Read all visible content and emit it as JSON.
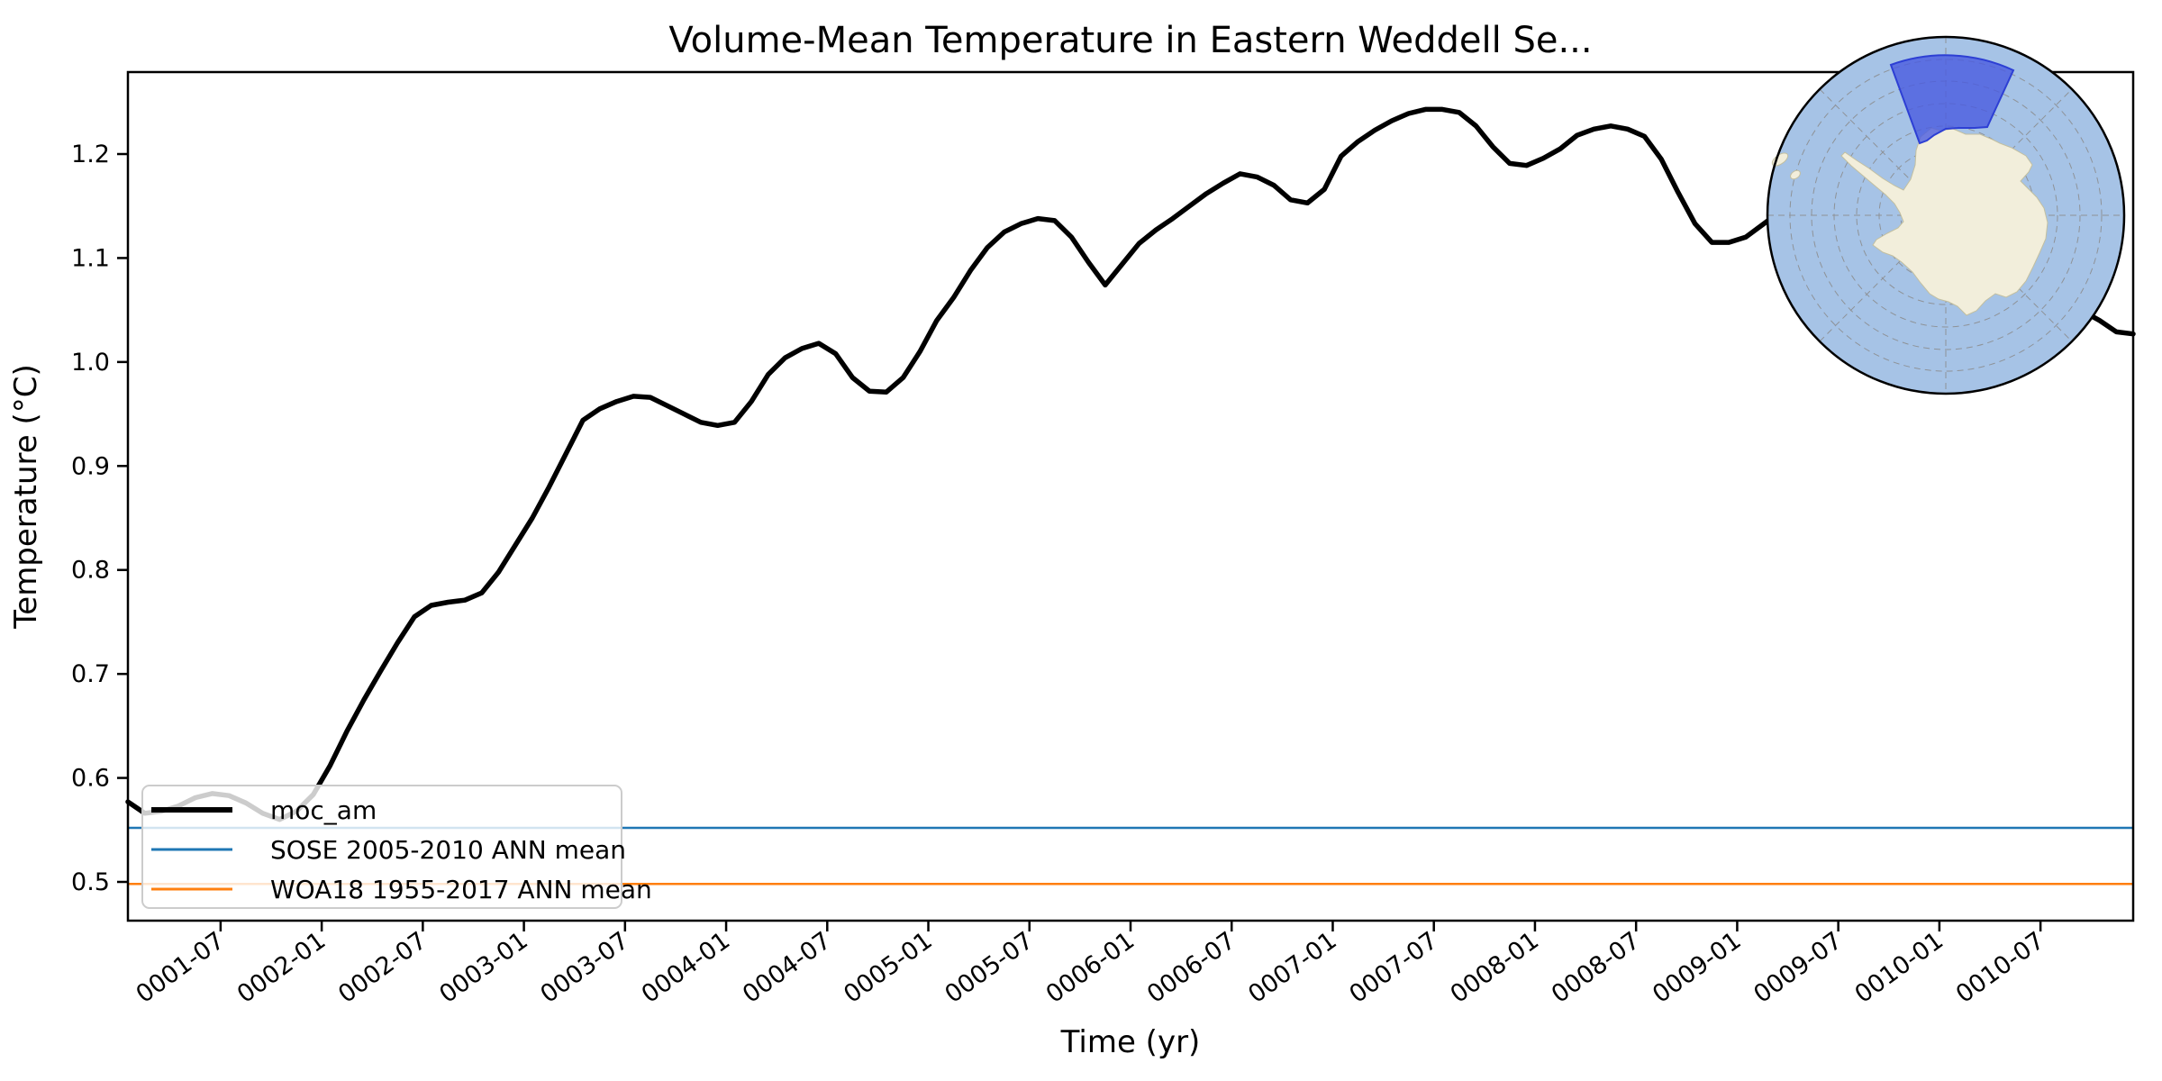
{
  "title": "Volume-Mean Temperature in Eastern Weddell Se...",
  "axes": {
    "xlabel": "Time (yr)",
    "ylabel": "Temperature (°C)",
    "x_tick_labels": [
      "0001-07",
      "0002-01",
      "0002-07",
      "0003-01",
      "0003-07",
      "0004-01",
      "0004-07",
      "0005-01",
      "0005-07",
      "0006-01",
      "0006-07",
      "0007-01",
      "0007-07",
      "0008-01",
      "0008-07",
      "0009-01",
      "0009-07",
      "0010-01",
      "0010-07"
    ],
    "y_tick_labels": [
      "0.5",
      "0.6",
      "0.7",
      "0.8",
      "0.9",
      "1.0",
      "1.1",
      "1.2"
    ]
  },
  "legend": {
    "items": [
      {
        "label": "moc_am",
        "color": "#000000"
      },
      {
        "label": "SOSE 2005-2010 ANN mean",
        "color": "#1f77b4"
      },
      {
        "label": "WOA18 1955-2017 ANN mean",
        "color": "#ff7f0e"
      }
    ]
  },
  "colors": {
    "curve": "#000000",
    "sose_blue": "#1f77b4",
    "woa_orange": "#ff7f0e",
    "spine": "#000000",
    "legend_border": "#cccccc",
    "map_ocean": "#a6c3e6",
    "map_land": "#f2eedb",
    "map_land_edge": "#c2bfa0",
    "map_region_fill": "#4a5be0",
    "map_region_border": "#2d3fd4",
    "map_graticule": "#8a8a8a",
    "map_border": "#000000"
  },
  "chart_data": {
    "type": "line",
    "title": "Volume-Mean Temperature in Eastern Weddell Se...",
    "xlabel": "Time (yr)",
    "ylabel": "Temperature (°C)",
    "x_start": "0001-01",
    "x_step_months": 1,
    "n_points": 120,
    "xlim": [
      "0001-01",
      "0010-12"
    ],
    "ylim": [
      0.463,
      1.279
    ],
    "grid": false,
    "legend_position": "lower left",
    "x_tick_labels": [
      "0001-07",
      "0002-01",
      "0002-07",
      "0003-01",
      "0003-07",
      "0004-01",
      "0004-07",
      "0005-01",
      "0005-07",
      "0006-01",
      "0006-07",
      "0007-01",
      "0007-07",
      "0008-01",
      "0008-07",
      "0009-01",
      "0009-07",
      "0010-01",
      "0010-07"
    ],
    "series": [
      {
        "name": "moc_am",
        "type": "line",
        "color": "#000000",
        "values": [
          0.577,
          0.566,
          0.568,
          0.573,
          0.581,
          0.585,
          0.583,
          0.576,
          0.566,
          0.56,
          0.568,
          0.584,
          0.612,
          0.645,
          0.675,
          0.703,
          0.73,
          0.755,
          0.766,
          0.769,
          0.771,
          0.778,
          0.798,
          0.824,
          0.85,
          0.88,
          0.912,
          0.944,
          0.955,
          0.962,
          0.967,
          0.966,
          0.958,
          0.95,
          0.942,
          0.939,
          0.942,
          0.962,
          0.988,
          1.004,
          1.013,
          1.018,
          1.008,
          0.985,
          0.972,
          0.971,
          0.985,
          1.01,
          1.04,
          1.062,
          1.088,
          1.11,
          1.125,
          1.133,
          1.138,
          1.136,
          1.12,
          1.096,
          1.074,
          1.094,
          1.114,
          1.127,
          1.138,
          1.15,
          1.162,
          1.172,
          1.181,
          1.178,
          1.17,
          1.156,
          1.153,
          1.166,
          1.198,
          1.212,
          1.223,
          1.232,
          1.239,
          1.243,
          1.243,
          1.24,
          1.227,
          1.207,
          1.191,
          1.189,
          1.196,
          1.205,
          1.218,
          1.224,
          1.227,
          1.224,
          1.217,
          1.195,
          1.163,
          1.133,
          1.115,
          1.115,
          1.12,
          1.132,
          1.144,
          1.157,
          1.168,
          1.176,
          1.179,
          1.175,
          1.165,
          1.151,
          1.136,
          1.122,
          1.11,
          1.099,
          1.089,
          1.081,
          1.074,
          1.067,
          1.061,
          1.055,
          1.049,
          1.04,
          1.029,
          1.027
        ]
      },
      {
        "name": "SOSE 2005-2010 ANN mean",
        "type": "hline",
        "color": "#1f77b4",
        "value": 0.552
      },
      {
        "name": "WOA18 1955-2017 ANN mean",
        "type": "hline",
        "color": "#ff7f0e",
        "value": 0.498
      }
    ]
  },
  "inset_map": {
    "type": "south-polar-stereographic",
    "has_highlighted_sector": true
  }
}
